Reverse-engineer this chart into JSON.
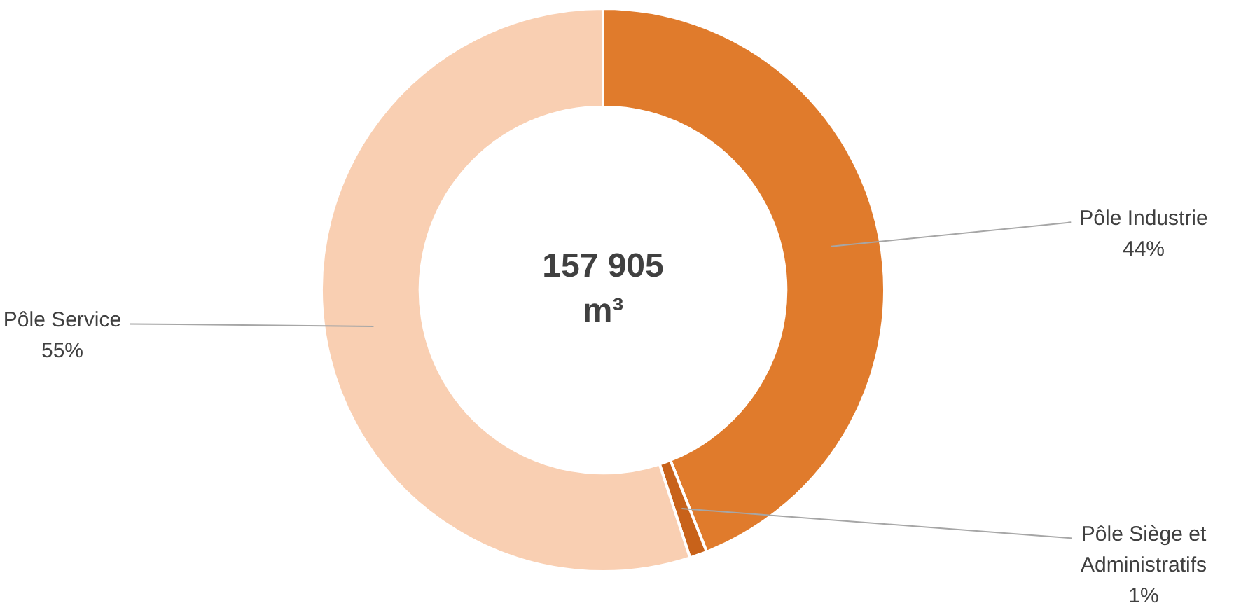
{
  "chart_data": {
    "type": "donut",
    "categories": [
      "Pôle Industrie",
      "Pôle Siège et Administratifs",
      "Pôle Service"
    ],
    "values": [
      44,
      1,
      55
    ],
    "colors": [
      "#e07b2c",
      "#c8621a",
      "#f9cfb2"
    ],
    "value_labels": [
      "44%",
      "1%",
      "55%"
    ],
    "annotations": [
      "157 905 m³"
    ],
    "legend": false
  }
}
